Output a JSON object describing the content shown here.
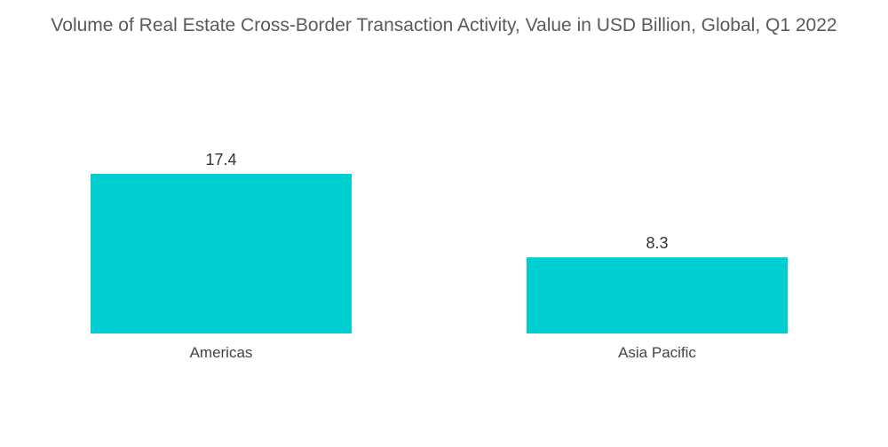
{
  "chart_data": {
    "type": "bar",
    "title": "Volume of Real Estate Cross-Border Transaction Activity, Value in USD Billion, Global, Q1 2022",
    "categories": [
      "Americas",
      "Asia Pacific"
    ],
    "values": [
      17.4,
      8.3
    ],
    "xlabel": "",
    "ylabel": "",
    "ylim": [
      0,
      17.4
    ],
    "grid": false,
    "legend": "none",
    "bar_color": "#00CED1"
  }
}
